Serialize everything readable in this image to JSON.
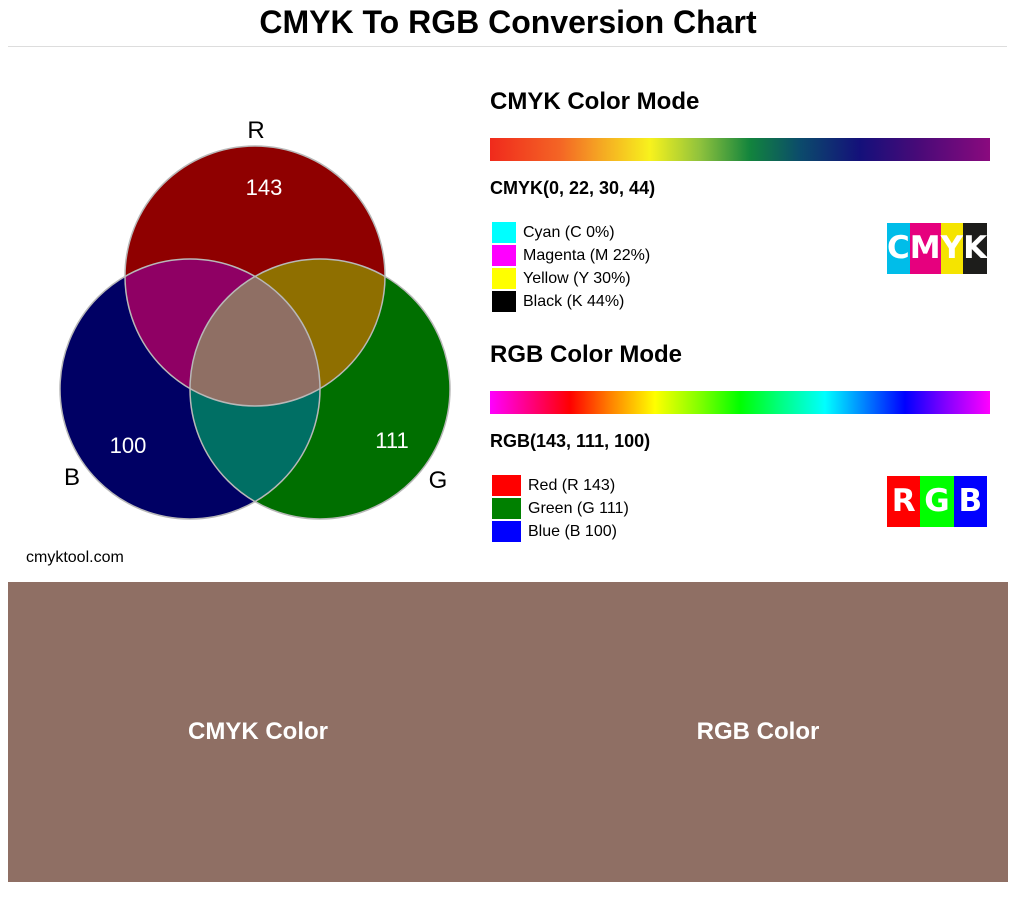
{
  "title": "CMYK To RGB Conversion Chart",
  "venn": {
    "labels": {
      "r": "R",
      "g": "G",
      "b": "B"
    },
    "values": {
      "r": "143",
      "g": "111",
      "b": "100"
    },
    "colors": {
      "r": "#8f0000",
      "g": "#006f00",
      "b": "#000064",
      "rg": "#8f6f00",
      "rb": "#8f0064",
      "gb": "#006f64",
      "rgb": "#8f6f64"
    }
  },
  "cmyk": {
    "heading": "CMYK Color Mode",
    "value": "CMYK(0, 22, 30, 44)",
    "legend": [
      {
        "label": "Cyan (C 0%)",
        "color": "#00ffff"
      },
      {
        "label": "Magenta (M 22%)",
        "color": "#ff00ff"
      },
      {
        "label": "Yellow (Y 30%)",
        "color": "#ffff00"
      },
      {
        "label": "Black (K 44%)",
        "color": "#000000"
      }
    ],
    "badge": [
      {
        "letter": "C",
        "color": "#00bde9"
      },
      {
        "letter": "M",
        "color": "#e6007e"
      },
      {
        "letter": "Y",
        "color": "#f5e400"
      },
      {
        "letter": "K",
        "color": "#1d1d1b"
      }
    ]
  },
  "rgb": {
    "heading": "RGB Color Mode",
    "value": "RGB(143, 111, 100)",
    "legend": [
      {
        "label": "Red (R 143)",
        "color": "#ff0000"
      },
      {
        "label": "Green (G 111)",
        "color": "#008000"
      },
      {
        "label": "Blue (B 100)",
        "color": "#0000ff"
      }
    ],
    "badge": [
      {
        "letter": "R",
        "color": "#ff0000"
      },
      {
        "letter": "G",
        "color": "#00ff00"
      },
      {
        "letter": "B",
        "color": "#0000ff"
      }
    ]
  },
  "site": "cmyktool.com",
  "preview": {
    "cmyk_label": "CMYK Color",
    "rgb_label": "RGB Color",
    "color": "#8f6f64"
  }
}
